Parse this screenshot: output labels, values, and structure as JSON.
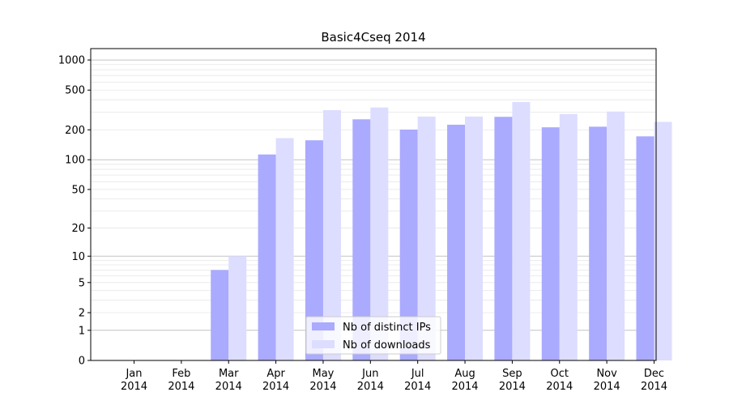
{
  "chart_data": {
    "type": "bar",
    "title": "Basic4Cseq 2014",
    "xlabel": "",
    "ylabel": "",
    "scale": "symlog",
    "ylim": [
      0,
      1300
    ],
    "grid": true,
    "legend_position": "bottom-center",
    "categories": [
      [
        "Jan",
        "2014"
      ],
      [
        "Feb",
        "2014"
      ],
      [
        "Mar",
        "2014"
      ],
      [
        "Apr",
        "2014"
      ],
      [
        "May",
        "2014"
      ],
      [
        "Jun",
        "2014"
      ],
      [
        "Jul",
        "2014"
      ],
      [
        "Aug",
        "2014"
      ],
      [
        "Sep",
        "2014"
      ],
      [
        "Oct",
        "2014"
      ],
      [
        "Nov",
        "2014"
      ],
      [
        "Dec",
        "2014"
      ]
    ],
    "yticks": [
      {
        "value": 0,
        "label": "0"
      },
      {
        "value": 1,
        "label": "1"
      },
      {
        "value": 2,
        "label": "2"
      },
      {
        "value": 5,
        "label": "5"
      },
      {
        "value": 10,
        "label": "10"
      },
      {
        "value": 20,
        "label": "20"
      },
      {
        "value": 50,
        "label": "50"
      },
      {
        "value": 100,
        "label": "100"
      },
      {
        "value": 200,
        "label": "200"
      },
      {
        "value": 500,
        "label": "500"
      },
      {
        "value": 1000,
        "label": "1000"
      }
    ],
    "series": [
      {
        "name": "Nb of distinct IPs",
        "color": "#aaaaff",
        "values": [
          0,
          0,
          7,
          113,
          157,
          255,
          201,
          225,
          270,
          212,
          215,
          172
        ]
      },
      {
        "name": "Nb of downloads",
        "color": "#ddddff",
        "values": [
          0,
          0,
          10,
          165,
          315,
          335,
          272,
          272,
          380,
          288,
          305,
          240
        ]
      }
    ]
  }
}
